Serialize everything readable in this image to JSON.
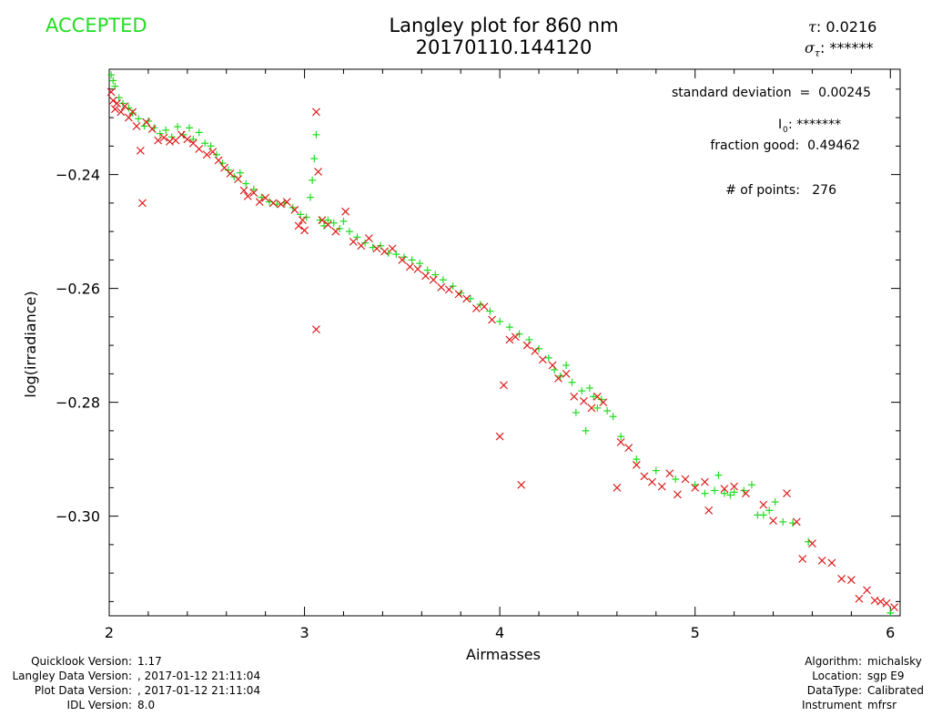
{
  "status": "ACCEPTED",
  "title": {
    "line1": "Langley plot for 860 nm",
    "line2": "20170110.144120"
  },
  "tau": {
    "symbol": "τ",
    "sep": ":",
    "value": "0.0216"
  },
  "sigma_tau": {
    "symbol": "σ",
    "sub": "τ",
    "sep": ":",
    "value": "******"
  },
  "annotations": {
    "std_dev": "standard deviation  =  0.00245",
    "i0_label": "I",
    "i0_sub": "0",
    "i0_value": ": *******",
    "fraction_good": "fraction good:  0.49462",
    "num_points": "# of points:   276"
  },
  "footer_left": [
    {
      "label": "Quicklook Version:",
      "value": "1.17"
    },
    {
      "label": "Langley Data Version:",
      "value": ", 2017-01-12 21:11:04"
    },
    {
      "label": "Plot Data Version:",
      "value": ", 2017-01-12 21:11:04"
    },
    {
      "label": "IDL Version:",
      "value": "8.0"
    }
  ],
  "footer_right": [
    {
      "label": "Algorithm:",
      "value": "michalsky"
    },
    {
      "label": "Location:",
      "value": "sgp E9"
    },
    {
      "label": "DataType:",
      "value": "Calibrated"
    },
    {
      "label": "Instrument",
      "value": "mfrsr"
    }
  ],
  "colors": {
    "accepted": "#22dd22",
    "good": "#22dd22",
    "rejected": "#dd1111"
  },
  "chart_data": {
    "type": "scatter",
    "xlabel": "Airmasses",
    "ylabel": "log(irradiance)",
    "xlim": [
      2.0,
      6.05
    ],
    "ylim": [
      -0.3175,
      -0.2215
    ],
    "xticks": [
      2,
      3,
      4,
      5,
      6
    ],
    "yticks": [
      -0.24,
      -0.26,
      -0.28,
      -0.3
    ],
    "ytick_labels": [
      "−0.24",
      "−0.26",
      "−0.28",
      "−0.30"
    ],
    "series": [
      {
        "marker": "plus",
        "color": "#22dd22",
        "points": [
          [
            2.01,
            -0.2225
          ],
          [
            2.02,
            -0.2235
          ],
          [
            2.03,
            -0.2245
          ],
          [
            2.05,
            -0.2265
          ],
          [
            2.07,
            -0.2275
          ],
          [
            2.1,
            -0.2283
          ],
          [
            2.12,
            -0.2292
          ],
          [
            2.15,
            -0.2302
          ],
          [
            2.18,
            -0.2315
          ],
          [
            2.2,
            -0.2306
          ],
          [
            2.23,
            -0.2318
          ],
          [
            2.26,
            -0.2328
          ],
          [
            2.29,
            -0.2322
          ],
          [
            2.32,
            -0.2334
          ],
          [
            2.35,
            -0.2316
          ],
          [
            2.38,
            -0.233
          ],
          [
            2.41,
            -0.2318
          ],
          [
            2.43,
            -0.2338
          ],
          [
            2.46,
            -0.2326
          ],
          [
            2.49,
            -0.2345
          ],
          [
            2.52,
            -0.235
          ],
          [
            2.55,
            -0.2365
          ],
          [
            2.58,
            -0.238
          ],
          [
            2.61,
            -0.2392
          ],
          [
            2.64,
            -0.2404
          ],
          [
            2.67,
            -0.2397
          ],
          [
            2.7,
            -0.2416
          ],
          [
            2.74,
            -0.2426
          ],
          [
            2.78,
            -0.244
          ],
          [
            2.82,
            -0.2448
          ],
          [
            2.86,
            -0.2452
          ],
          [
            2.9,
            -0.245
          ],
          [
            2.94,
            -0.2458
          ],
          [
            2.98,
            -0.247
          ],
          [
            3.01,
            -0.2475
          ],
          [
            3.03,
            -0.244
          ],
          [
            3.04,
            -0.241
          ],
          [
            3.05,
            -0.2372
          ],
          [
            3.06,
            -0.233
          ],
          [
            3.08,
            -0.248
          ],
          [
            3.1,
            -0.249
          ],
          [
            3.12,
            -0.248
          ],
          [
            3.15,
            -0.2485
          ],
          [
            3.18,
            -0.2495
          ],
          [
            3.2,
            -0.2482
          ],
          [
            3.23,
            -0.25
          ],
          [
            3.27,
            -0.251
          ],
          [
            3.31,
            -0.252
          ],
          [
            3.35,
            -0.2528
          ],
          [
            3.39,
            -0.2525
          ],
          [
            3.43,
            -0.2538
          ],
          [
            3.47,
            -0.254
          ],
          [
            3.51,
            -0.2545
          ],
          [
            3.55,
            -0.255
          ],
          [
            3.59,
            -0.2556
          ],
          [
            3.63,
            -0.2568
          ],
          [
            3.67,
            -0.2576
          ],
          [
            3.71,
            -0.2585
          ],
          [
            3.76,
            -0.2596
          ],
          [
            3.8,
            -0.2608
          ],
          [
            3.85,
            -0.2618
          ],
          [
            3.9,
            -0.2628
          ],
          [
            3.95,
            -0.264
          ],
          [
            4.0,
            -0.2658
          ],
          [
            4.05,
            -0.2668
          ],
          [
            4.1,
            -0.268
          ],
          [
            4.15,
            -0.269
          ],
          [
            4.2,
            -0.2706
          ],
          [
            4.25,
            -0.2722
          ],
          [
            4.28,
            -0.2743
          ],
          [
            4.31,
            -0.2754
          ],
          [
            4.34,
            -0.2735
          ],
          [
            4.37,
            -0.2765
          ],
          [
            4.39,
            -0.2818
          ],
          [
            4.42,
            -0.278
          ],
          [
            4.44,
            -0.285
          ],
          [
            4.46,
            -0.2775
          ],
          [
            4.48,
            -0.279
          ],
          [
            4.5,
            -0.281
          ],
          [
            4.52,
            -0.2795
          ],
          [
            4.55,
            -0.2815
          ],
          [
            4.58,
            -0.2825
          ],
          [
            4.62,
            -0.286
          ],
          [
            4.7,
            -0.29
          ],
          [
            4.8,
            -0.292
          ],
          [
            4.9,
            -0.2935
          ],
          [
            5.0,
            -0.2945
          ],
          [
            5.05,
            -0.296
          ],
          [
            5.1,
            -0.2955
          ],
          [
            5.12,
            -0.2928
          ],
          [
            5.15,
            -0.296
          ],
          [
            5.18,
            -0.2963
          ],
          [
            5.2,
            -0.2958
          ],
          [
            5.25,
            -0.2955
          ],
          [
            5.29,
            -0.2945
          ],
          [
            5.32,
            -0.2998
          ],
          [
            5.35,
            -0.2998
          ],
          [
            5.38,
            -0.299
          ],
          [
            5.41,
            -0.2975
          ],
          [
            5.45,
            -0.301
          ],
          [
            5.5,
            -0.3012
          ],
          [
            5.58,
            -0.3045
          ],
          [
            6.0,
            -0.317
          ]
        ]
      },
      {
        "marker": "x",
        "color": "#dd1111",
        "points": [
          [
            2.01,
            -0.2255
          ],
          [
            2.02,
            -0.227
          ],
          [
            2.03,
            -0.2285
          ],
          [
            2.04,
            -0.2275
          ],
          [
            2.06,
            -0.229
          ],
          [
            2.08,
            -0.228
          ],
          [
            2.1,
            -0.23
          ],
          [
            2.12,
            -0.229
          ],
          [
            2.14,
            -0.2315
          ],
          [
            2.16,
            -0.2358
          ],
          [
            2.17,
            -0.245
          ],
          [
            2.19,
            -0.2308
          ],
          [
            2.22,
            -0.232
          ],
          [
            2.25,
            -0.234
          ],
          [
            2.28,
            -0.2335
          ],
          [
            2.31,
            -0.2342
          ],
          [
            2.34,
            -0.234
          ],
          [
            2.37,
            -0.233
          ],
          [
            2.4,
            -0.2338
          ],
          [
            2.43,
            -0.2345
          ],
          [
            2.46,
            -0.2355
          ],
          [
            2.5,
            -0.2365
          ],
          [
            2.53,
            -0.236
          ],
          [
            2.56,
            -0.2375
          ],
          [
            2.59,
            -0.2388
          ],
          [
            2.62,
            -0.2398
          ],
          [
            2.66,
            -0.2408
          ],
          [
            2.69,
            -0.2428
          ],
          [
            2.71,
            -0.2438
          ],
          [
            2.74,
            -0.2432
          ],
          [
            2.77,
            -0.2448
          ],
          [
            2.8,
            -0.2441
          ],
          [
            2.84,
            -0.245
          ],
          [
            2.88,
            -0.2452
          ],
          [
            2.91,
            -0.2448
          ],
          [
            2.95,
            -0.2462
          ],
          [
            2.97,
            -0.249
          ],
          [
            2.99,
            -0.248
          ],
          [
            3.0,
            -0.2498
          ],
          [
            3.06,
            -0.229
          ],
          [
            3.07,
            -0.2395
          ],
          [
            3.06,
            -0.2672
          ],
          [
            3.09,
            -0.248
          ],
          [
            3.12,
            -0.2488
          ],
          [
            3.16,
            -0.25
          ],
          [
            3.21,
            -0.2465
          ],
          [
            3.25,
            -0.2518
          ],
          [
            3.29,
            -0.2525
          ],
          [
            3.33,
            -0.2512
          ],
          [
            3.37,
            -0.253
          ],
          [
            3.41,
            -0.2535
          ],
          [
            3.45,
            -0.253
          ],
          [
            3.5,
            -0.255
          ],
          [
            3.54,
            -0.2562
          ],
          [
            3.58,
            -0.2566
          ],
          [
            3.62,
            -0.2578
          ],
          [
            3.66,
            -0.2585
          ],
          [
            3.7,
            -0.2598
          ],
          [
            3.74,
            -0.2602
          ],
          [
            3.79,
            -0.261
          ],
          [
            3.83,
            -0.2618
          ],
          [
            3.88,
            -0.2635
          ],
          [
            3.92,
            -0.2632
          ],
          [
            3.96,
            -0.2655
          ],
          [
            4.0,
            -0.286
          ],
          [
            4.02,
            -0.277
          ],
          [
            4.05,
            -0.269
          ],
          [
            4.08,
            -0.2685
          ],
          [
            4.11,
            -0.2945
          ],
          [
            4.14,
            -0.27
          ],
          [
            4.18,
            -0.271
          ],
          [
            4.22,
            -0.2725
          ],
          [
            4.27,
            -0.2735
          ],
          [
            4.3,
            -0.2758
          ],
          [
            4.34,
            -0.275
          ],
          [
            4.38,
            -0.279
          ],
          [
            4.43,
            -0.2798
          ],
          [
            4.47,
            -0.281
          ],
          [
            4.5,
            -0.279
          ],
          [
            4.53,
            -0.28
          ],
          [
            4.6,
            -0.295
          ],
          [
            4.62,
            -0.287
          ],
          [
            4.66,
            -0.288
          ],
          [
            4.7,
            -0.291
          ],
          [
            4.74,
            -0.293
          ],
          [
            4.78,
            -0.294
          ],
          [
            4.83,
            -0.2948
          ],
          [
            4.87,
            -0.2925
          ],
          [
            4.91,
            -0.2962
          ],
          [
            4.95,
            -0.2935
          ],
          [
            5.0,
            -0.295
          ],
          [
            5.05,
            -0.294
          ],
          [
            5.07,
            -0.299
          ],
          [
            5.15,
            -0.2952
          ],
          [
            5.2,
            -0.2948
          ],
          [
            5.26,
            -0.296
          ],
          [
            5.35,
            -0.298
          ],
          [
            5.4,
            -0.3008
          ],
          [
            5.47,
            -0.296
          ],
          [
            5.52,
            -0.301
          ],
          [
            5.55,
            -0.3075
          ],
          [
            5.6,
            -0.3048
          ],
          [
            5.65,
            -0.3078
          ],
          [
            5.7,
            -0.3082
          ],
          [
            5.75,
            -0.311
          ],
          [
            5.8,
            -0.3112
          ],
          [
            5.84,
            -0.3145
          ],
          [
            5.88,
            -0.313
          ],
          [
            5.92,
            -0.3148
          ],
          [
            5.95,
            -0.315
          ],
          [
            5.98,
            -0.3153
          ],
          [
            6.02,
            -0.316
          ]
        ]
      }
    ]
  }
}
